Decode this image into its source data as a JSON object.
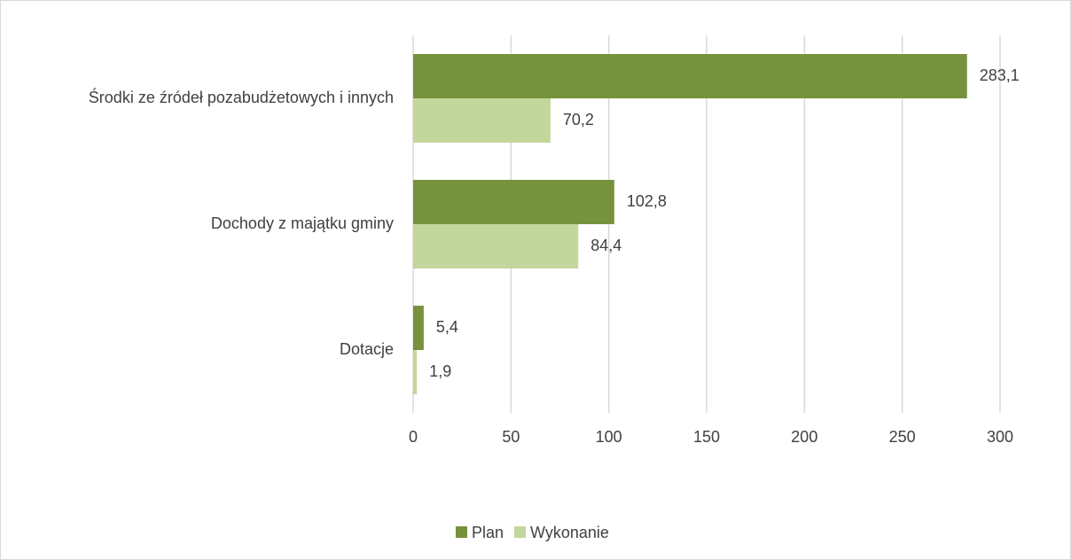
{
  "chart_data": {
    "type": "hbar",
    "categories": [
      "Środki ze źródeł pozabudżetowych i innych",
      "Dochody z majątku gminy",
      "Dotacje"
    ],
    "series": [
      {
        "name": "Plan",
        "color": "#76923c",
        "values": [
          283.1,
          102.8,
          5.4
        ],
        "value_labels": [
          "283,1",
          "102,8",
          "5,4"
        ]
      },
      {
        "name": "Wykonanie",
        "color": "#c3d69b",
        "values": [
          70.2,
          84.4,
          1.9
        ],
        "value_labels": [
          "70,2",
          "84,4",
          "1,9"
        ]
      }
    ],
    "xlim": [
      0,
      300
    ],
    "xticks": [
      0,
      50,
      100,
      150,
      200,
      250,
      300
    ],
    "grid": true,
    "legend": "bottom"
  }
}
